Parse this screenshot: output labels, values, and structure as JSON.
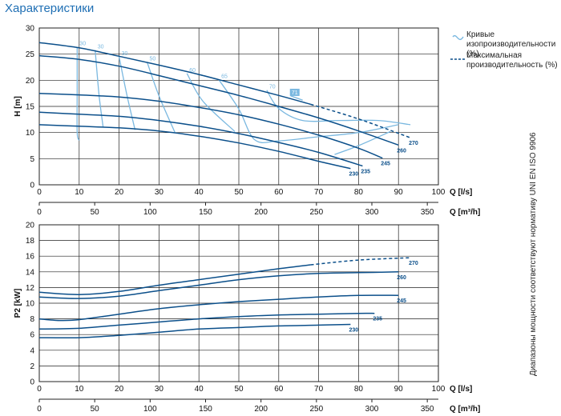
{
  "page_title": "Характеристики",
  "legend": {
    "eff_label": "Кривые изопроизводительности (%)",
    "max_label": "Максимальная производительность (%)"
  },
  "side_note": "Диапазоны мощности соответствуют нормативу UNI EN ISO 9906",
  "colors": {
    "curve": "#0b4f8a",
    "efficiency": "#7ab8e0",
    "grid": "#222222",
    "accent": "#1f6fb4"
  },
  "chart_data": [
    {
      "type": "line",
      "title": "",
      "xlabel": "Q [l/s]",
      "x2label": "Q [m³/h]",
      "ylabel": "H [m]",
      "xlim": [
        0,
        100
      ],
      "ylim": [
        0,
        30
      ],
      "x_ticks": [
        0,
        10,
        20,
        30,
        40,
        50,
        60,
        70,
        80,
        90,
        100
      ],
      "y_ticks": [
        0,
        5,
        10,
        15,
        20,
        25,
        30
      ],
      "x2_ticks": [
        0,
        50,
        100,
        150,
        200,
        250,
        300,
        350
      ],
      "grid": true,
      "series": [
        {
          "name": "230",
          "x": [
            0,
            10,
            20,
            30,
            40,
            50,
            60,
            70,
            78
          ],
          "y": [
            11.5,
            11.2,
            10.9,
            10.3,
            9.3,
            8.0,
            6.4,
            4.5,
            3.1
          ]
        },
        {
          "name": "235",
          "x": [
            0,
            10,
            20,
            30,
            40,
            50,
            60,
            70,
            81
          ],
          "y": [
            13.9,
            13.5,
            13.1,
            12.3,
            11.2,
            9.8,
            8.1,
            6.2,
            3.6
          ]
        },
        {
          "name": "245",
          "x": [
            0,
            10,
            20,
            30,
            40,
            50,
            60,
            70,
            80,
            86
          ],
          "y": [
            17.5,
            17.2,
            16.8,
            16.0,
            14.8,
            13.4,
            11.6,
            9.5,
            7.0,
            5.1
          ]
        },
        {
          "name": "260",
          "x": [
            0,
            10,
            20,
            30,
            40,
            50,
            60,
            70,
            80,
            90
          ],
          "y": [
            24.7,
            24.0,
            22.7,
            20.9,
            19.0,
            17.1,
            15.0,
            12.8,
            10.3,
            7.6
          ]
        },
        {
          "name": "270",
          "x": [
            0,
            10,
            20,
            30,
            40,
            50,
            60,
            68,
            80,
            93
          ],
          "y": [
            27.2,
            26.2,
            24.6,
            22.9,
            21.1,
            19.1,
            17.1,
            15.4,
            12.6,
            9.0
          ],
          "dashed_from_x": 68
        }
      ],
      "efficiency_curves": [
        {
          "label": "30",
          "x": [
            9.5,
            9.5,
            9.5,
            10
          ],
          "y": [
            26.4,
            18,
            10,
            8.5
          ]
        },
        {
          "label": "30",
          "x": [
            14,
            15,
            16
          ],
          "y": [
            25.8,
            17,
            11
          ]
        },
        {
          "label": "30",
          "x": [
            20,
            22,
            24
          ],
          "y": [
            24.5,
            17,
            10.5
          ]
        },
        {
          "label": "50",
          "x": [
            27,
            30,
            34
          ],
          "y": [
            23.5,
            17,
            10
          ]
        },
        {
          "label": "60",
          "x": [
            37,
            41,
            49
          ],
          "y": [
            21.3,
            16,
            10.2
          ]
        },
        {
          "label": "65",
          "x": [
            45,
            50,
            54,
            60,
            70,
            80,
            90
          ],
          "y": [
            20.1,
            14.5,
            8.6,
            8.4,
            9.2,
            10,
            11.5
          ]
        },
        {
          "label": "70",
          "x": [
            57,
            60,
            66,
            75,
            85,
            93
          ],
          "y": [
            18.1,
            14.6,
            12.3,
            12.3,
            12.3,
            11.5
          ]
        },
        {
          "label": "71",
          "x": [
            63,
            66
          ],
          "y": [
            17.0,
            16.2
          ]
        },
        {
          "label": "",
          "x": [
            74,
            80,
            88
          ],
          "y": [
            5.8,
            7.5,
            10.2
          ]
        }
      ],
      "curve_labels": [
        "230",
        "235",
        "245",
        "260",
        "270"
      ]
    },
    {
      "type": "line",
      "title": "",
      "xlabel": "Q [l/s]",
      "x2label": "Q [m³/h]",
      "ylabel": "P2 [kW]",
      "xlim": [
        0,
        100
      ],
      "ylim": [
        0,
        20
      ],
      "x_ticks": [
        0,
        10,
        20,
        30,
        40,
        50,
        60,
        70,
        80,
        90,
        100
      ],
      "y_ticks": [
        0,
        2,
        4,
        6,
        8,
        10,
        12,
        14,
        16,
        18,
        20
      ],
      "x2_ticks": [
        0,
        50,
        100,
        150,
        200,
        250,
        300,
        350
      ],
      "grid": true,
      "series": [
        {
          "name": "230",
          "x": [
            0,
            10,
            20,
            30,
            40,
            50,
            60,
            70,
            78
          ],
          "y": [
            5.6,
            5.6,
            5.9,
            6.3,
            6.7,
            6.9,
            7.1,
            7.2,
            7.3
          ]
        },
        {
          "name": "235",
          "x": [
            0,
            10,
            20,
            30,
            40,
            50,
            60,
            70,
            80,
            84
          ],
          "y": [
            6.7,
            6.8,
            7.2,
            7.6,
            8.0,
            8.3,
            8.5,
            8.6,
            8.7,
            8.7
          ]
        },
        {
          "name": "245",
          "x": [
            0,
            5,
            10,
            20,
            30,
            40,
            50,
            60,
            70,
            80,
            90
          ],
          "y": [
            8.0,
            7.8,
            7.9,
            8.6,
            9.3,
            9.8,
            10.2,
            10.5,
            10.8,
            11.0,
            11.0
          ]
        },
        {
          "name": "260",
          "x": [
            0,
            10,
            20,
            30,
            40,
            50,
            60,
            70,
            80,
            90
          ],
          "y": [
            10.8,
            10.6,
            10.9,
            11.6,
            12.3,
            13.0,
            13.5,
            13.8,
            13.9,
            14.0
          ]
        },
        {
          "name": "270",
          "x": [
            0,
            10,
            20,
            30,
            40,
            50,
            60,
            68,
            80,
            93
          ],
          "y": [
            11.4,
            11.1,
            11.5,
            12.3,
            13.0,
            13.7,
            14.4,
            14.9,
            15.5,
            15.8
          ],
          "dashed_from_x": 68
        }
      ],
      "curve_labels": [
        "230",
        "235",
        "245",
        "260",
        "270"
      ]
    }
  ]
}
